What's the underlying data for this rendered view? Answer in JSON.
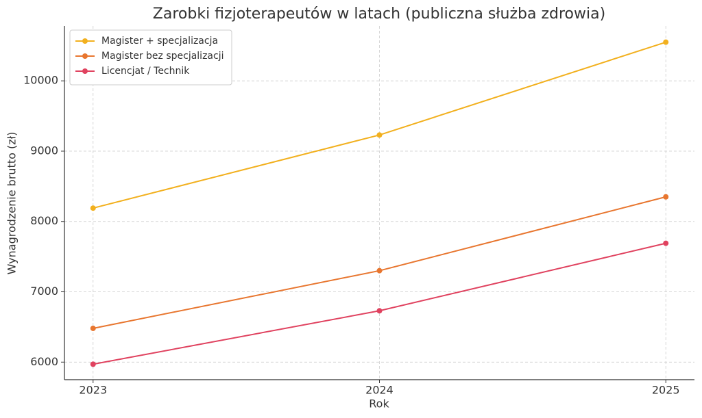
{
  "chart_data": {
    "type": "line",
    "title": "Zarobki fizjoterapeutów w latach (publiczna służba zdrowia)",
    "x_label": "Rok",
    "y_label": "Wynagrodzenie brutto (zł)",
    "x": [
      2023,
      2024,
      2025
    ],
    "series": [
      {
        "name": "Magister + specjalizacja",
        "color": "#f2b01e",
        "values": [
          8190,
          9230,
          10550
        ]
      },
      {
        "name": "Magister bez specjalizacji",
        "color": "#e8762f",
        "values": [
          6480,
          7300,
          8350
        ]
      },
      {
        "name": "Licencjat / Technik",
        "color": "#e0425f",
        "values": [
          5970,
          6730,
          7690
        ]
      }
    ],
    "xlim": [
      2022.9,
      2025.1
    ],
    "xticks": [
      2023,
      2024,
      2025
    ],
    "ylim": [
      5750,
      10780
    ],
    "yticks": [
      6000,
      7000,
      8000,
      9000,
      10000
    ],
    "grid": true,
    "legend": "upper left"
  }
}
